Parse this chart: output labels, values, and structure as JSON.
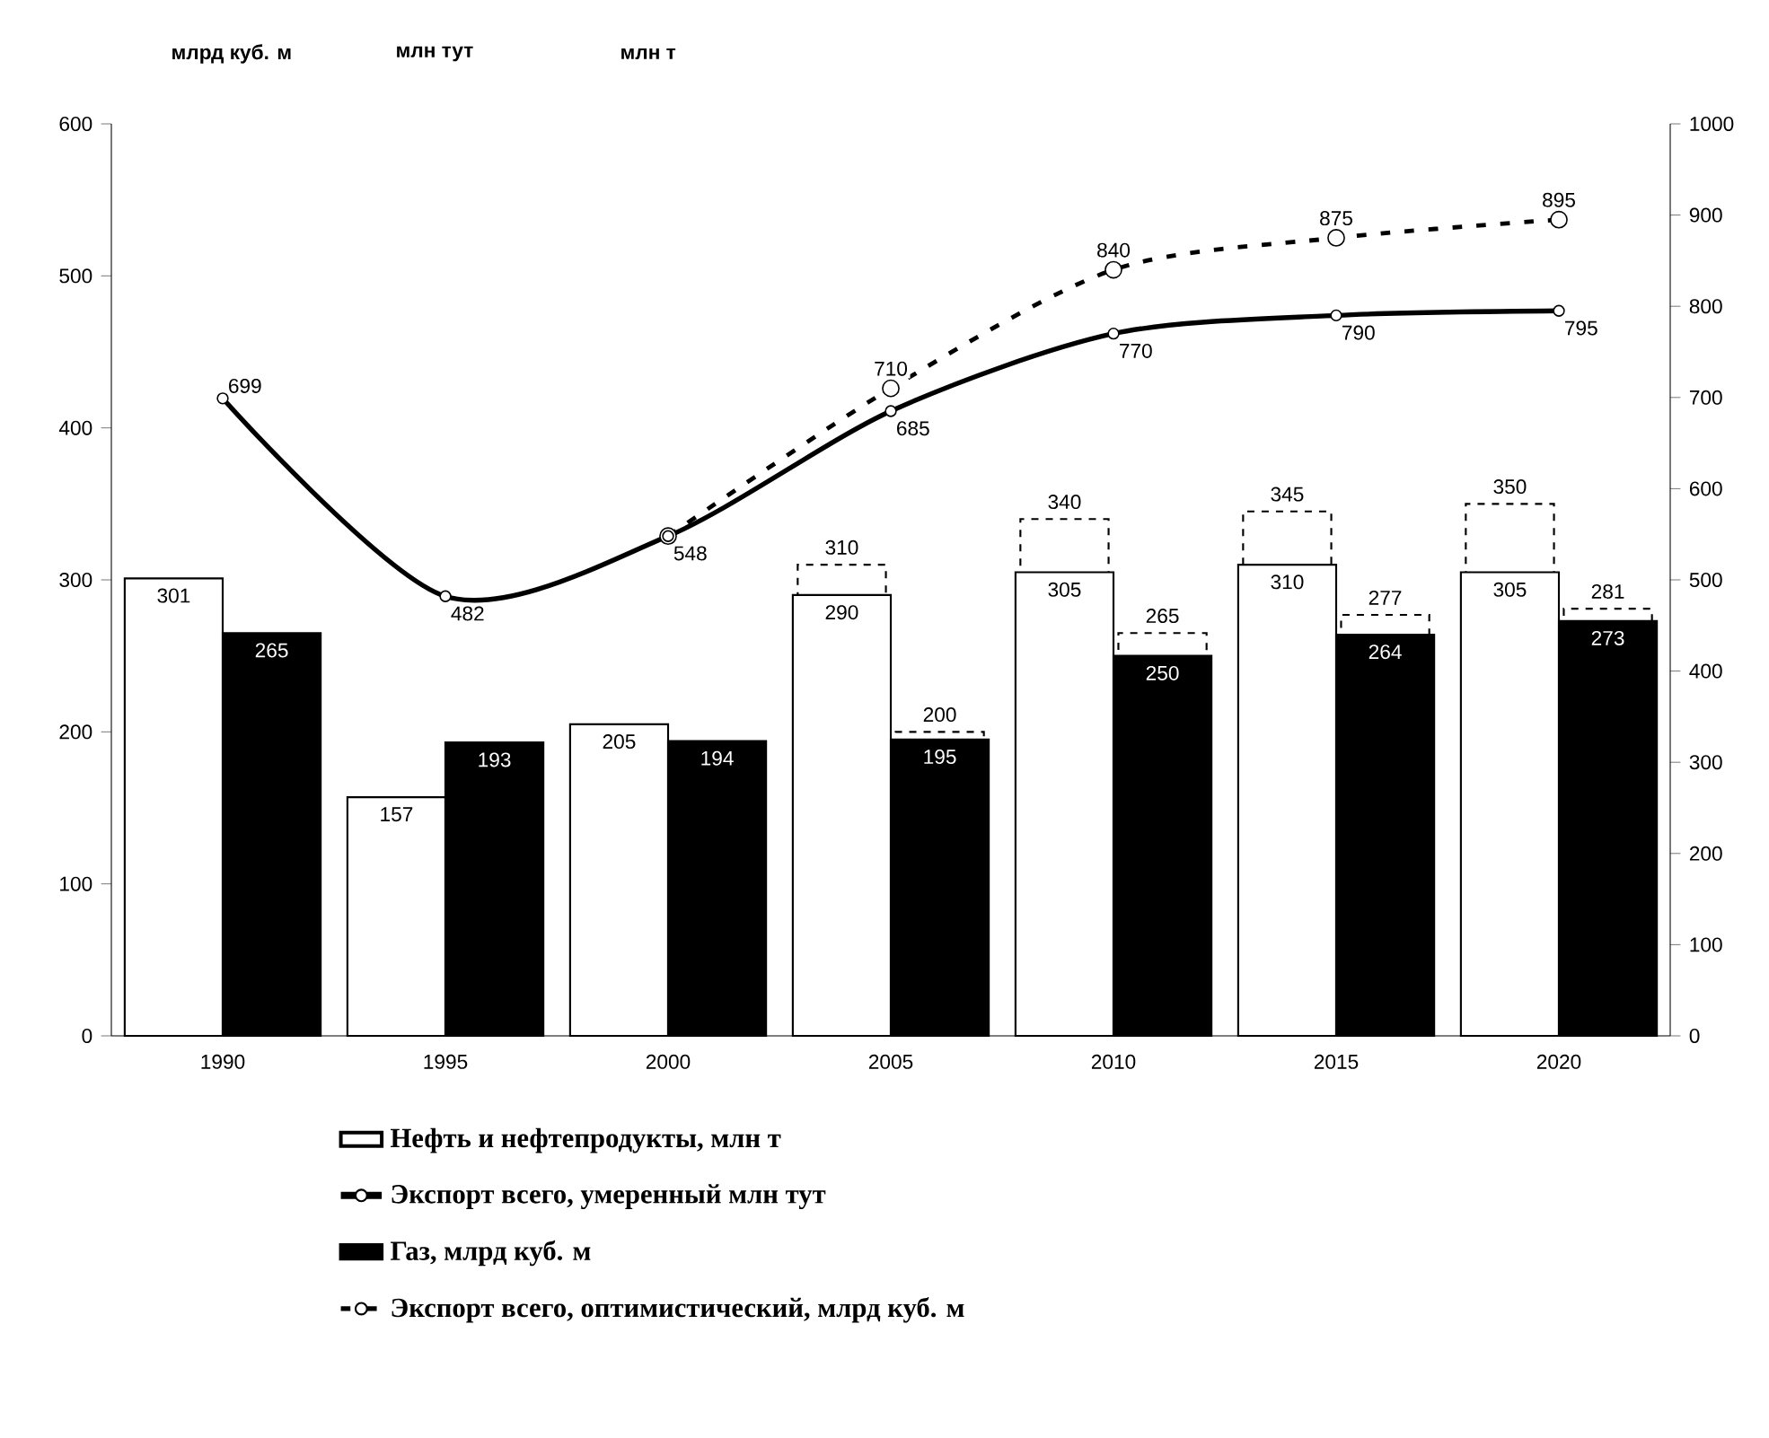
{
  "chart_data": {
    "type": "bar",
    "categories": [
      "1990",
      "1995",
      "2000",
      "2005",
      "2010",
      "2015",
      "2020"
    ],
    "annotations": [
      "млрд куб. м",
      "млн тут",
      "млн т"
    ],
    "ylim": [
      0,
      600
    ],
    "yticks": [
      0,
      100,
      200,
      300,
      400,
      500,
      600
    ],
    "y2lim": [
      0,
      1000
    ],
    "y2ticks": [
      0,
      100,
      200,
      300,
      400,
      500,
      600,
      700,
      800,
      900,
      1000
    ],
    "data_labels": true,
    "legend": "bottom",
    "marker": "circle",
    "series": [
      {
        "name": "Нефть и нефтепродукты, млн т",
        "color": "#ffffff",
        "values": [
          301,
          157,
          205,
          290,
          305,
          310,
          305
        ]
      },
      {
        "line_style": "dashed",
        "color": "#ffffff",
        "values": [
          null,
          null,
          null,
          310,
          340,
          345,
          350
        ]
      },
      {
        "name": "Экспорт всего, умеренный млн тут",
        "type": "line",
        "axis": "y2",
        "color": "#000000",
        "values": [
          699,
          482,
          548,
          685,
          770,
          790,
          795
        ]
      },
      {
        "name": "Газ, млрд куб. м",
        "color": "#000000",
        "values": [
          265,
          193,
          194,
          195,
          250,
          264,
          273
        ]
      },
      {
        "line_style": "dashed",
        "color": "#ffffff",
        "values": [
          null,
          null,
          null,
          200,
          265,
          277,
          281
        ]
      },
      {
        "name": "Экспорт всего, оптимистический, млрд куб. м",
        "type": "line",
        "line_style": "dashed",
        "axis": "y2",
        "color": "#000000",
        "values": [
          null,
          null,
          548,
          710,
          840,
          875,
          895
        ],
        "value_labels": [
          null,
          null,
          null,
          "710",
          "840",
          "875",
          "895"
        ]
      }
    ]
  }
}
